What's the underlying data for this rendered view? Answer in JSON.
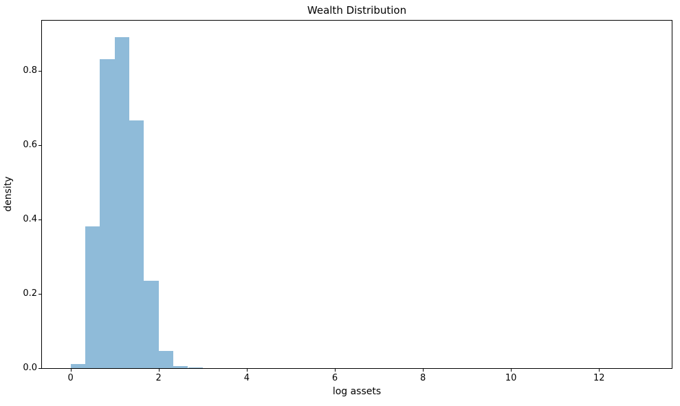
{
  "chart_data": {
    "type": "bar",
    "subtype": "histogram",
    "title": "Wealth Distribution",
    "xlabel": "log assets",
    "ylabel": "density",
    "bin_edges": [
      0.0,
      0.3333,
      0.6667,
      1.0,
      1.3333,
      1.6667,
      2.0,
      2.3333,
      2.6667,
      3.0
    ],
    "densities": [
      0.011,
      0.382,
      0.833,
      0.892,
      0.667,
      0.235,
      0.047,
      0.005,
      0.002
    ],
    "bar_color": "#8fbbd9",
    "xlim": [
      -0.65,
      13.65
    ],
    "ylim": [
      0,
      0.936
    ],
    "xticks": [
      {
        "value": 0,
        "label": "0"
      },
      {
        "value": 2,
        "label": "2"
      },
      {
        "value": 4,
        "label": "4"
      },
      {
        "value": 6,
        "label": "6"
      },
      {
        "value": 8,
        "label": "8"
      },
      {
        "value": 10,
        "label": "10"
      },
      {
        "value": 12,
        "label": "12"
      }
    ],
    "yticks": [
      {
        "value": 0.0,
        "label": "0.0"
      },
      {
        "value": 0.2,
        "label": "0.2"
      },
      {
        "value": 0.4,
        "label": "0.4"
      },
      {
        "value": 0.6,
        "label": "0.6"
      },
      {
        "value": 0.8,
        "label": "0.8"
      }
    ],
    "grid": false,
    "legend_position": "none"
  }
}
